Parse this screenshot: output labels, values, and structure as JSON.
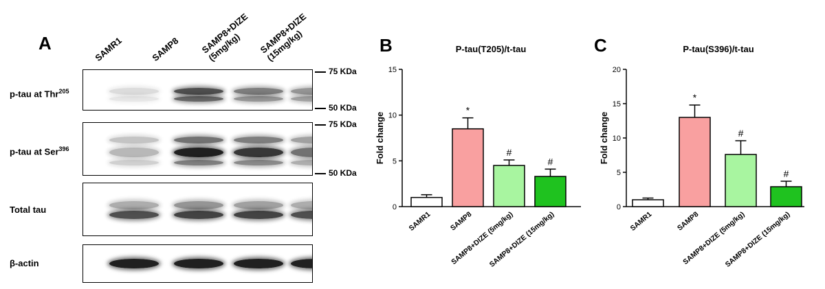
{
  "panelA": {
    "letter": "A",
    "lanes": [
      "SAMR1",
      "SAMP8",
      "SAMP8+DIZE\n(5mg/kg)",
      "SAMP8+DIZE\n(15mg/kg)"
    ],
    "blots": [
      {
        "label": "p-tau at Thr",
        "sup": "205",
        "markers": [
          "75 KDa",
          "50 KDa"
        ]
      },
      {
        "label": "p-tau at Ser",
        "sup": "396",
        "markers": [
          "75 KDa",
          "50 KDa"
        ]
      },
      {
        "label": "Total tau",
        "sup": "",
        "markers": []
      },
      {
        "label": "β-actin",
        "sup": "",
        "markers": []
      }
    ]
  },
  "chart_data": [
    {
      "panel": "B",
      "type": "bar",
      "title": "P-tau(T205)/t-tau",
      "ylabel": "Fold change",
      "xlabel": "",
      "categories": [
        "SAMR1",
        "SAMP8",
        "SAMP8+DIZE (5mg/kg)",
        "SAMP8+DIZE (15mg/kg)"
      ],
      "values": [
        1.0,
        8.5,
        4.5,
        3.3
      ],
      "errors": [
        0.3,
        1.2,
        0.6,
        0.8
      ],
      "annotations": [
        "",
        "*",
        "#",
        "#"
      ],
      "colors": [
        "#ffffff",
        "#f9a0a0",
        "#a8f5a0",
        "#1fc21f"
      ],
      "ylim": [
        0,
        15
      ],
      "yticks": [
        0,
        5,
        10,
        15
      ]
    },
    {
      "panel": "C",
      "type": "bar",
      "title": "P-tau(S396)/t-tau",
      "ylabel": "Fold change",
      "xlabel": "",
      "categories": [
        "SAMR1",
        "SAMP8",
        "SAMP8+DIZE (5mg/kg)",
        "SAMP8+DIZE (15mg/kg)"
      ],
      "values": [
        1.0,
        13.0,
        7.6,
        2.9
      ],
      "errors": [
        0.25,
        1.8,
        2.0,
        0.8
      ],
      "annotations": [
        "",
        "*",
        "#",
        "#"
      ],
      "colors": [
        "#ffffff",
        "#f9a0a0",
        "#a8f5a0",
        "#1fc21f"
      ],
      "ylim": [
        0,
        20
      ],
      "yticks": [
        0,
        5,
        10,
        15,
        20
      ]
    }
  ]
}
